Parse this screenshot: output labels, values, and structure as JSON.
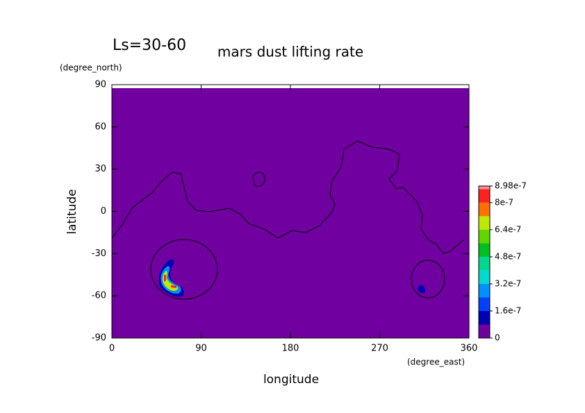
{
  "chart_data": {
    "type": "contour",
    "title": "mars dust lifting rate",
    "annotation": "Ls=30-60",
    "x_label": "longitude",
    "x_unit": "(degree_east)",
    "y_label": "latitude",
    "y_unit": "(degree_north)",
    "xlim": [
      0,
      360
    ],
    "xticks": [
      0,
      90,
      180,
      270,
      360
    ],
    "ylim": [
      -90,
      90
    ],
    "yticks": [
      -90,
      -60,
      -30,
      0,
      30,
      60,
      90
    ],
    "colorbar": {
      "levels": [
        0,
        8e-08,
        1.6e-07,
        2.4e-07,
        3.2e-07,
        4e-07,
        4.8e-07,
        5.6e-07,
        6.4e-07,
        7.2e-07,
        8e-07,
        8.8e-07,
        8.98e-07
      ],
      "colors": [
        "#7000a0",
        "#0000b4",
        "#0040ff",
        "#0090ff",
        "#00d8d0",
        "#00d890",
        "#00c020",
        "#60d800",
        "#c0e800",
        "#ff7000",
        "#ff2020",
        "#f09090"
      ],
      "ticks": [
        0,
        1.6e-07,
        3.2e-07,
        4.8e-07,
        6.4e-07,
        8e-07,
        8.98e-07
      ]
    }
  }
}
